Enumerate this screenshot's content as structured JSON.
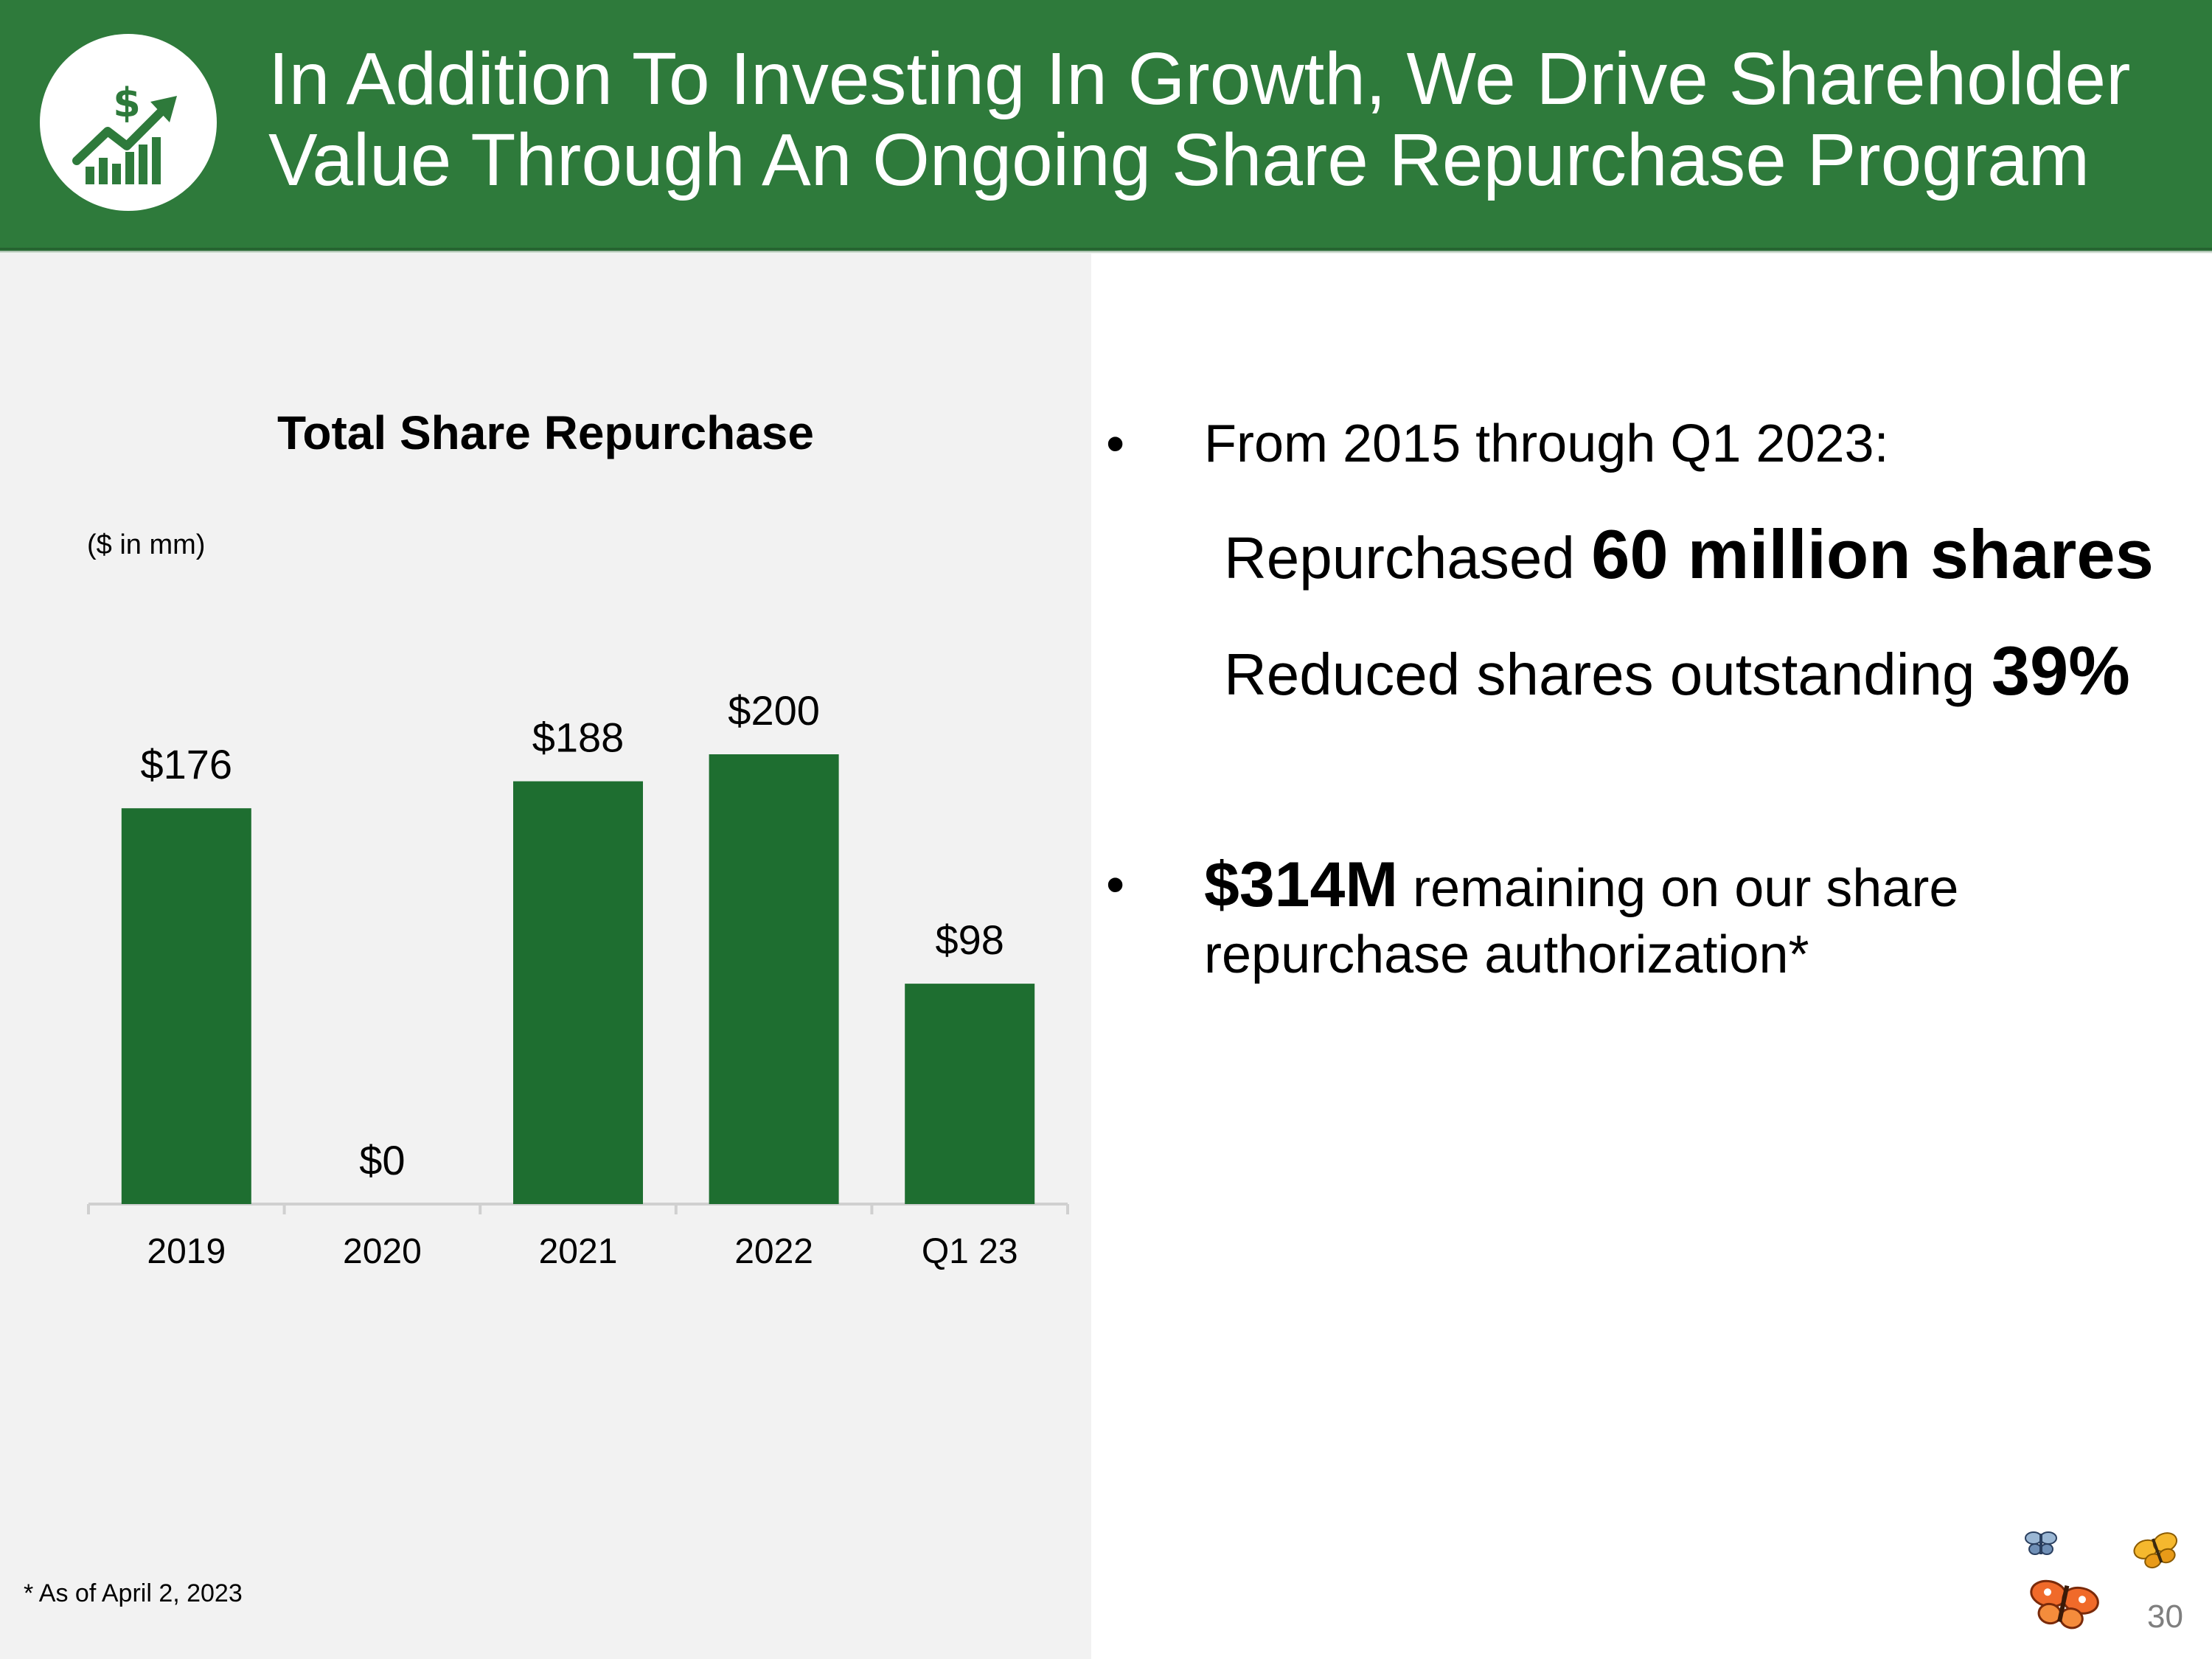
{
  "header": {
    "title_line1": "In Addition To Investing In Growth, We Drive Shareholder",
    "title_line2": "Value Through An Ongoing Share Repurchase Program",
    "icon": "growth-chart-dollar-icon",
    "bg_color": "#2e7a3b"
  },
  "chart_data": {
    "type": "bar",
    "title": "Total Share Repurchase",
    "units_label": "($ in mm)",
    "categories": [
      "2019",
      "2020",
      "2021",
      "2022",
      "Q1 23"
    ],
    "values": [
      176,
      0,
      188,
      200,
      98
    ],
    "data_labels": [
      "$176",
      "$0",
      "$188",
      "$200",
      "$98"
    ],
    "xlabel": "",
    "ylabel": "",
    "ylim": [
      0,
      200
    ],
    "grid": false,
    "bar_color": "#1e6e30"
  },
  "bullets": {
    "b1_text": "From 2015 through Q1 2023:",
    "sub1_prefix": "Repurchased ",
    "sub1_bold": "60 million shares",
    "sub2_prefix": "Reduced shares outstanding ",
    "sub2_bold": "39%",
    "b2_bold": "$314M",
    "b2_line1_rest": " remaining on our share",
    "b2_line2": "repurchase authorization*",
    "bullet_char": "•"
  },
  "footnote": "* As of April 2, 2023",
  "page_number": "30",
  "decoration": "butterflies-logo"
}
